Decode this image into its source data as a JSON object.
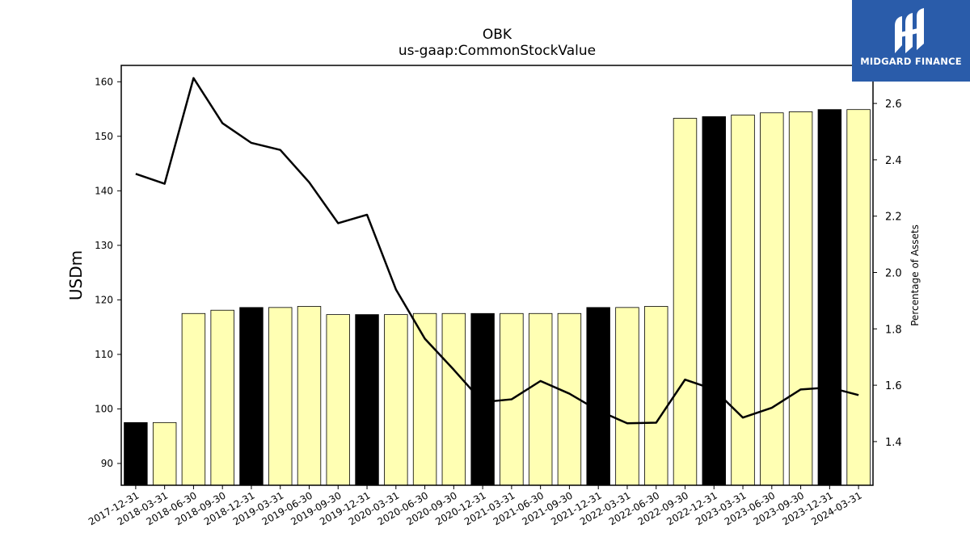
{
  "chart_data": {
    "type": "bar",
    "title": "OBK",
    "subtitle": "us-gaap:CommonStockValue",
    "ylabel": "USDm",
    "y2label": "Percentage of Assets",
    "ylim": [
      86,
      163
    ],
    "y2lim": [
      1.245,
      2.735
    ],
    "yticks": [
      90,
      100,
      110,
      120,
      130,
      140,
      150,
      160
    ],
    "y2ticks": [
      "1.4",
      "1.6",
      "1.8",
      "2.0",
      "2.2",
      "2.4",
      "2.6"
    ],
    "categories": [
      "2017-12-31",
      "2018-03-31",
      "2018-06-30",
      "2018-09-30",
      "2018-12-31",
      "2019-03-31",
      "2019-06-30",
      "2019-09-30",
      "2019-12-31",
      "2020-03-31",
      "2020-06-30",
      "2020-09-30",
      "2020-12-31",
      "2021-03-31",
      "2021-06-30",
      "2021-09-30",
      "2021-12-31",
      "2022-03-31",
      "2022-06-30",
      "2022-09-30",
      "2022-12-31",
      "2023-03-31",
      "2023-06-30",
      "2023-09-30",
      "2023-12-31",
      "2024-03-31"
    ],
    "series": [
      {
        "values": [
          97.5,
          97.5,
          117.5,
          118.1,
          118.6,
          118.6,
          118.8,
          117.3,
          117.3,
          117.3,
          117.5,
          117.5,
          117.5,
          117.5,
          117.5,
          117.5,
          118.6,
          118.6,
          118.8,
          153.3,
          153.6,
          153.9,
          154.3,
          154.5,
          154.9,
          154.9
        ],
        "bar_colors": [
          "#000000",
          "#ffffb3",
          "#ffffb3",
          "#ffffb3",
          "#000000",
          "#ffffb3",
          "#ffffb3",
          "#ffffb3",
          "#000000",
          "#ffffb3",
          "#ffffb3",
          "#ffffb3",
          "#000000",
          "#ffffb3",
          "#ffffb3",
          "#ffffb3",
          "#000000",
          "#ffffb3",
          "#ffffb3",
          "#ffffb3",
          "#000000",
          "#ffffb3",
          "#ffffb3",
          "#ffffb3",
          "#000000",
          "#ffffb3"
        ]
      },
      {
        "axis": "right",
        "type": "line",
        "color": "#000000",
        "values": [
          2.35,
          2.315,
          2.69,
          2.53,
          2.46,
          2.435,
          2.32,
          2.175,
          2.205,
          1.94,
          1.765,
          1.655,
          1.54,
          1.55,
          1.615,
          1.57,
          1.51,
          1.465,
          1.467,
          1.62,
          1.585,
          1.485,
          1.52,
          1.585,
          1.592,
          1.565
        ]
      }
    ],
    "grid": false
  },
  "logo": {
    "text": "MIDGARD FINANCE",
    "color": "#2a5caa"
  }
}
